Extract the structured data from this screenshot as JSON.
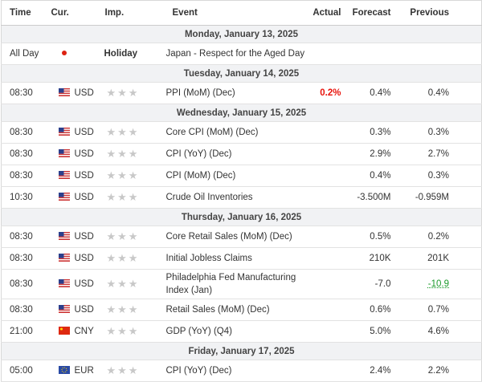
{
  "columns": [
    "Time",
    "Cur.",
    "Imp.",
    "Event",
    "Actual",
    "Forecast",
    "Previous"
  ],
  "days": [
    {
      "date": "Monday, January 13, 2025",
      "rows": [
        {
          "time": "All Day",
          "flag": "jp",
          "impact": "Holiday",
          "event": "Japan - Respect for the Aged Day"
        }
      ]
    },
    {
      "date": "Tuesday, January 14, 2025",
      "rows": [
        {
          "time": "08:30",
          "flag": "us",
          "currency": "USD",
          "event": "PPI (MoM) (Dec)",
          "actual": "0.2%",
          "actual_color": "#e8140c",
          "forecast": "0.4%",
          "previous": "0.4%"
        }
      ]
    },
    {
      "date": "Wednesday, January 15, 2025",
      "rows": [
        {
          "time": "08:30",
          "flag": "us",
          "currency": "USD",
          "event": "Core CPI (MoM) (Dec)",
          "forecast": "0.3%",
          "previous": "0.3%"
        },
        {
          "time": "08:30",
          "flag": "us",
          "currency": "USD",
          "event": "CPI (YoY) (Dec)",
          "forecast": "2.9%",
          "previous": "2.7%"
        },
        {
          "time": "08:30",
          "flag": "us",
          "currency": "USD",
          "event": "CPI (MoM) (Dec)",
          "forecast": "0.4%",
          "previous": "0.3%"
        },
        {
          "time": "10:30",
          "flag": "us",
          "currency": "USD",
          "event": "Crude Oil Inventories",
          "forecast": "-3.500M",
          "previous": "-0.959M"
        }
      ]
    },
    {
      "date": "Thursday, January 16, 2025",
      "rows": [
        {
          "time": "08:30",
          "flag": "us",
          "currency": "USD",
          "event": "Core Retail Sales (MoM) (Dec)",
          "forecast": "0.5%",
          "previous": "0.2%"
        },
        {
          "time": "08:30",
          "flag": "us",
          "currency": "USD",
          "event": "Initial Jobless Claims",
          "forecast": "210K",
          "previous": "201K"
        },
        {
          "time": "08:30",
          "flag": "us",
          "currency": "USD",
          "event": "Philadelphia Fed Manufacturing Index (Jan)",
          "forecast": "-7.0",
          "previous": "-10.9",
          "previous_color": "#1a9a2a"
        },
        {
          "time": "08:30",
          "flag": "us",
          "currency": "USD",
          "event": "Retail Sales (MoM) (Dec)",
          "forecast": "0.6%",
          "previous": "0.7%"
        },
        {
          "time": "21:00",
          "flag": "cn",
          "currency": "CNY",
          "event": "GDP (YoY) (Q4)",
          "forecast": "5.0%",
          "previous": "4.6%"
        }
      ]
    },
    {
      "date": "Friday, January 17, 2025",
      "rows": [
        {
          "time": "05:00",
          "flag": "eu",
          "currency": "EUR",
          "event": "CPI (YoY) (Dec)",
          "forecast": "2.4%",
          "previous": "2.2%"
        }
      ]
    }
  ]
}
